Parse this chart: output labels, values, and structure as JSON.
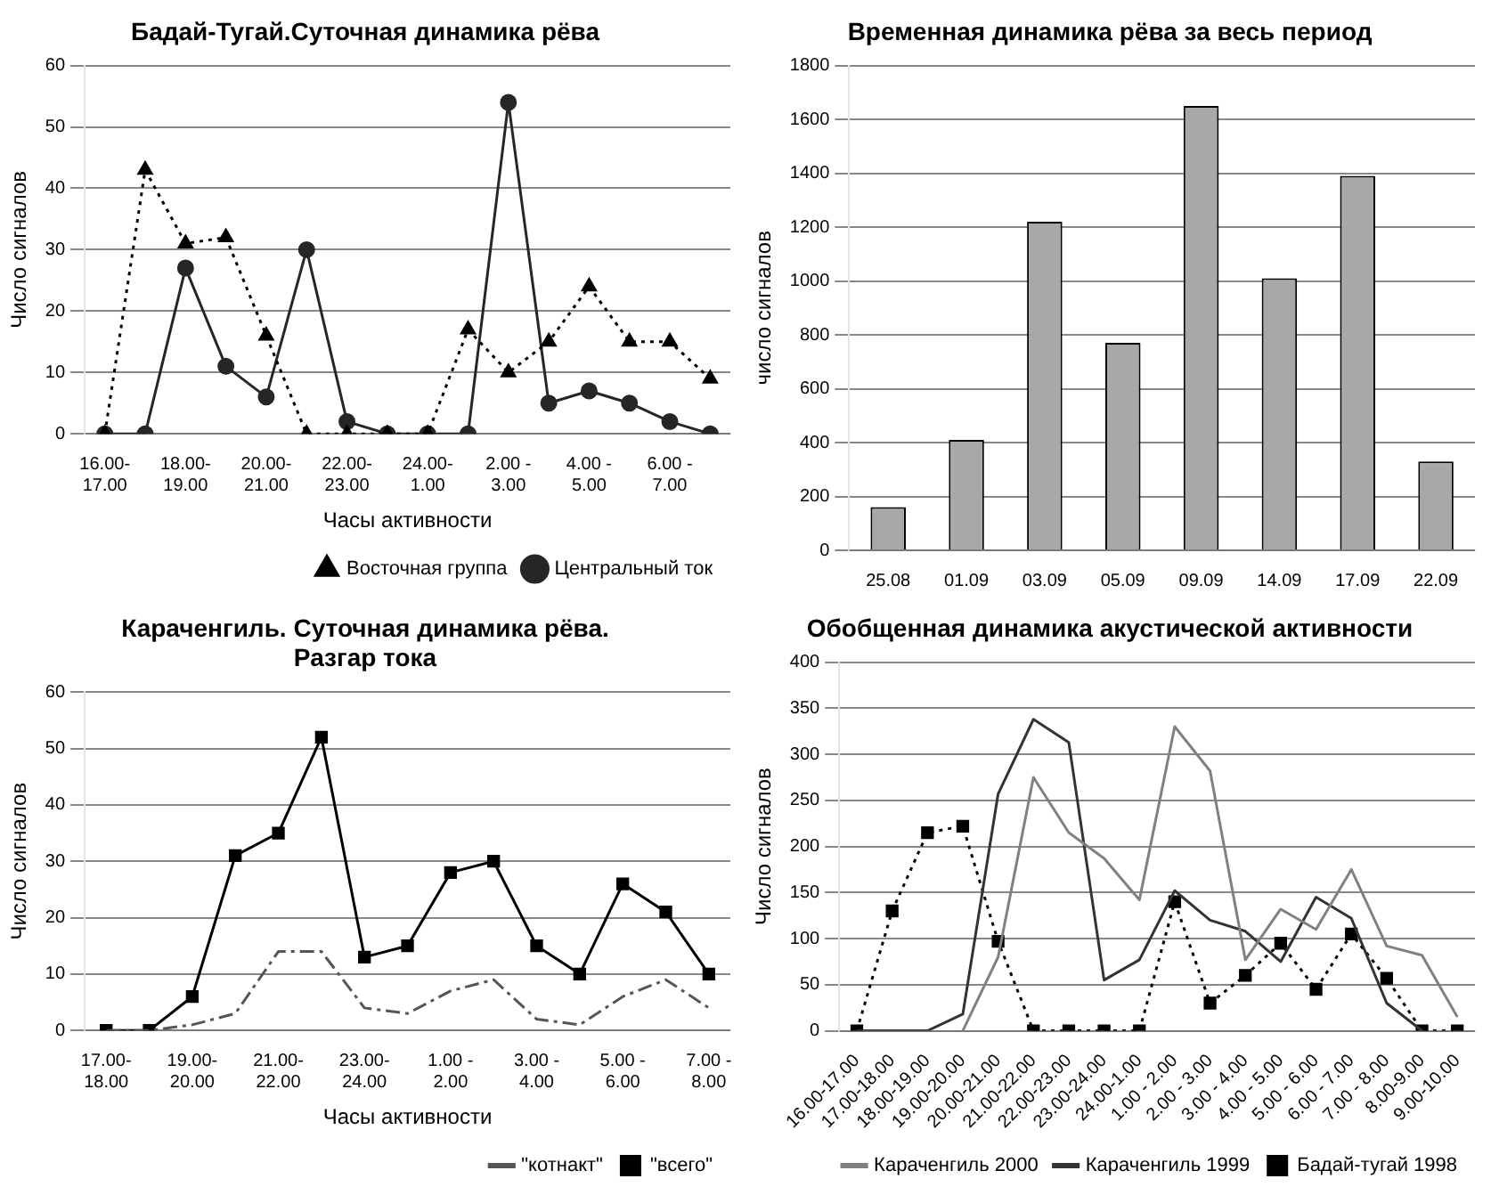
{
  "chart_data": [
    {
      "type": "line",
      "title": "Бадай-Тугай.Суточная динамика рёва",
      "xlabel": "Часы активности",
      "ylabel": "Число сигналов",
      "categories": [
        "16.00-17.00",
        null,
        "18.00-19.00",
        null,
        "20.00-21.00",
        null,
        "22.00-23.00",
        null,
        "24.00-1.00",
        null,
        "2.00 - 3.00",
        null,
        "4.00 - 5.00",
        null,
        "6.00 - 7.00",
        null
      ],
      "series": [
        {
          "name": "Восточная группа",
          "color": "#000000",
          "marker": "triangle",
          "line_style": "dotted",
          "values": [
            0,
            43,
            31,
            32,
            16,
            0,
            0,
            0,
            0,
            17,
            10,
            15,
            24,
            15,
            15,
            9
          ]
        },
        {
          "name": "Центральный ток",
          "color": "#262626",
          "marker": "circle",
          "line_style": "solid",
          "values": [
            0,
            0,
            27,
            11,
            6,
            30,
            2,
            0,
            0,
            0,
            54,
            5,
            7,
            5,
            2,
            0
          ]
        }
      ],
      "ylim": [
        0,
        60
      ],
      "yticks": [
        0,
        10,
        20,
        30,
        40,
        50,
        60
      ],
      "grid": "y",
      "legend": "bottom right"
    },
    {
      "type": "bar",
      "title": "Временная динамика рёва за весь период",
      "ylabel": "число сигналов",
      "categories": [
        "25.08",
        "01.09",
        "03.09",
        "05.09",
        "09.09",
        "14.09",
        "17.09",
        "22.09"
      ],
      "color": "#a8a8a8",
      "values": [
        160,
        410,
        1220,
        770,
        1650,
        1010,
        1390,
        330
      ],
      "ylim": [
        0,
        1800
      ],
      "yticks": [
        0,
        200,
        400,
        600,
        800,
        1000,
        1200,
        1400,
        1600,
        1800
      ],
      "grid": "y"
    },
    {
      "type": "line",
      "title": "Караченгиль. Суточная динамика рёва. Разгар тока",
      "xlabel": "Часы активности",
      "ylabel": "Число сигналов",
      "categories": [
        "17.00-18.00",
        null,
        "19.00-20.00",
        null,
        "21.00-22.00",
        null,
        "23.00-24.00",
        null,
        "1.00 - 2.00",
        null,
        "3.00 - 4.00",
        null,
        "5.00 - 6.00",
        null,
        "7.00 - 8.00"
      ],
      "series": [
        {
          "name": "\"котнакт\"",
          "color": "#555555",
          "marker": "none",
          "line_style": "dashed",
          "values": [
            0,
            0,
            1,
            3,
            14,
            14,
            4,
            3,
            7,
            9,
            2,
            1,
            6,
            9,
            4
          ]
        },
        {
          "name": "\"всего\"",
          "color": "#000000",
          "marker": "square",
          "line_style": "solid",
          "values": [
            0,
            0,
            6,
            31,
            35,
            52,
            13,
            15,
            28,
            30,
            15,
            10,
            26,
            21,
            10
          ]
        }
      ],
      "ylim": [
        0,
        60
      ],
      "yticks": [
        0,
        10,
        20,
        30,
        40,
        50,
        60
      ],
      "grid": "y",
      "legend": "bottom right"
    },
    {
      "type": "line",
      "title": "Обобщенная динамика акустической активности",
      "ylabel": "Число сигналов",
      "categories": [
        "16.00-17.00",
        "17.00-18.00",
        "18.00-19.00",
        "19.00-20.00",
        "20.00-21.00",
        "21.00-22.00",
        "22.00-23.00",
        "23.00-24.00",
        "24.00-1.00",
        "1.00 - 2.00",
        "2.00 - 3.00",
        "3.00 - 4.00",
        "4.00 - 5.00",
        "5.00 - 6.00",
        "6.00 - 7.00",
        "7.00 - 8.00",
        "8.00-9.00",
        "9.00-10.00"
      ],
      "series": [
        {
          "name": "Караченгиль 2000",
          "color": "#808080",
          "marker": "none",
          "line_style": "solid",
          "values": [
            null,
            null,
            null,
            0,
            80,
            275,
            215,
            187,
            142,
            330,
            282,
            77,
            132,
            110,
            175,
            92,
            82,
            15
          ]
        },
        {
          "name": "Караченгиль 1999",
          "color": "#333333",
          "marker": "none",
          "line_style": "solid",
          "values": [
            0,
            0,
            0,
            18,
            257,
            338,
            313,
            55,
            77,
            152,
            120,
            108,
            75,
            145,
            122,
            30,
            0,
            null
          ]
        },
        {
          "name": "Бадай-тугай 1998",
          "color": "#000000",
          "marker": "square",
          "line_style": "dotted",
          "values": [
            0,
            130,
            215,
            222,
            97,
            0,
            0,
            0,
            0,
            140,
            30,
            60,
            95,
            45,
            105,
            57,
            0,
            0
          ]
        }
      ],
      "ylim": [
        0,
        400
      ],
      "yticks": [
        0,
        50,
        100,
        150,
        200,
        250,
        300,
        350,
        400
      ],
      "grid": "y",
      "legend": "bottom right"
    }
  ]
}
